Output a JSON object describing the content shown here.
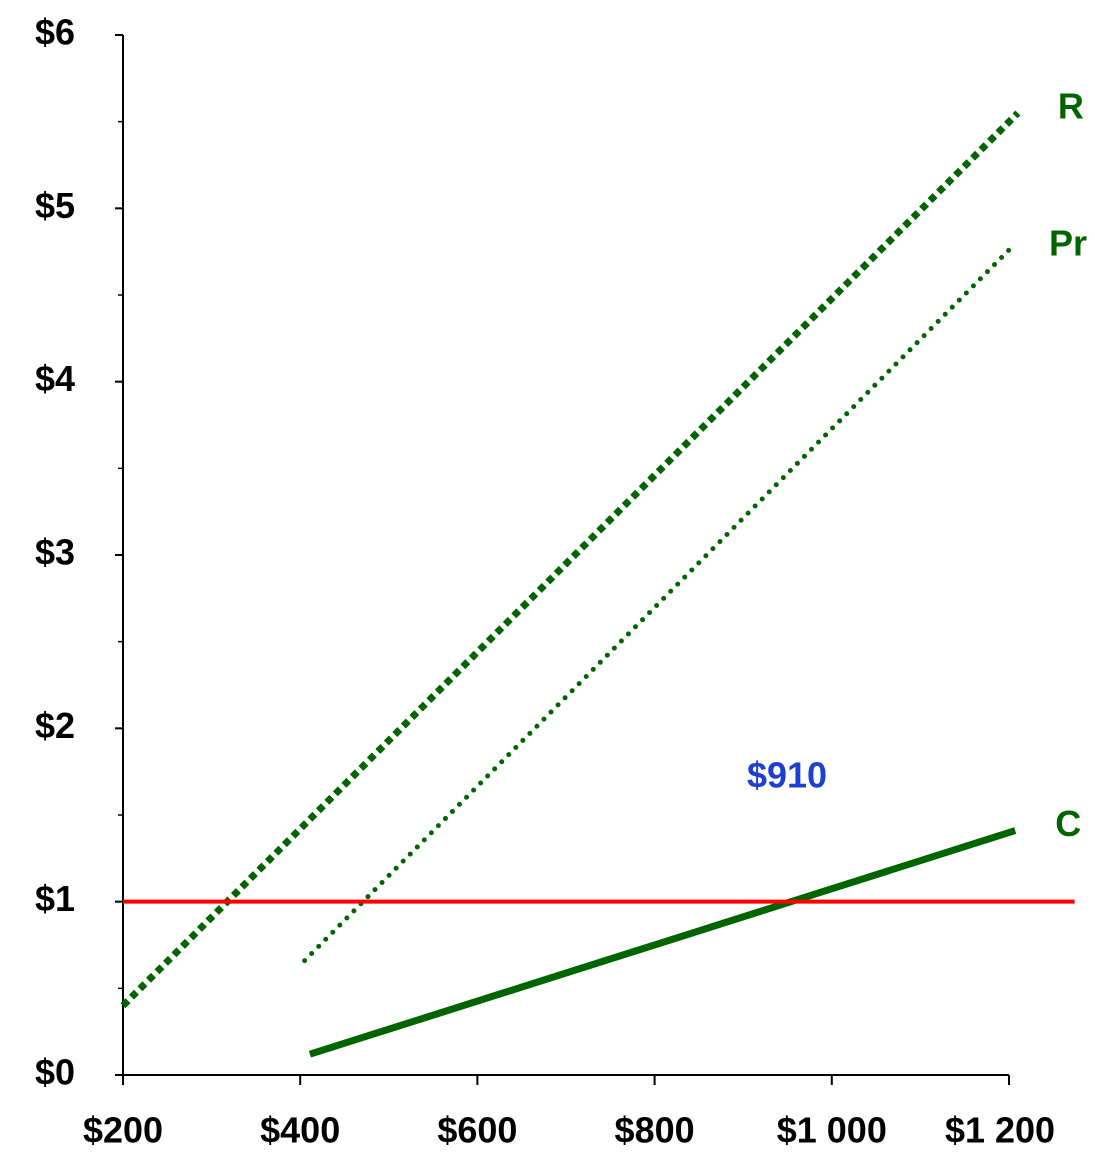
{
  "chart_data": {
    "type": "line",
    "xlim": [
      200,
      1200
    ],
    "ylim": [
      0,
      6
    ],
    "xticks": [
      {
        "value": 200,
        "label": "$200"
      },
      {
        "value": 400,
        "label": "$400"
      },
      {
        "value": 600,
        "label": "$600"
      },
      {
        "value": 800,
        "label": "$800"
      },
      {
        "value": 1000,
        "label": "$1 000"
      },
      {
        "value": 1200,
        "label": "$1 200"
      }
    ],
    "yticks": [
      {
        "value": 0,
        "label": "$0"
      },
      {
        "value": 1,
        "label": "$1"
      },
      {
        "value": 2,
        "label": "$2"
      },
      {
        "value": 3,
        "label": "$3"
      },
      {
        "value": 4,
        "label": "$4"
      },
      {
        "value": 5,
        "label": "$5"
      },
      {
        "value": 6,
        "label": "$6"
      }
    ],
    "series": [
      {
        "name": "R",
        "color": "#006400",
        "style": "square-dot",
        "x": [
          200,
          1210
        ],
        "values": [
          0.4,
          5.55
        ]
      },
      {
        "name": "Pr",
        "color": "#006400",
        "style": "round-dot",
        "x": [
          405,
          1200
        ],
        "values": [
          0.66,
          4.76
        ]
      },
      {
        "name": "C",
        "color": "#006400",
        "style": "solid",
        "x": [
          411,
          1207
        ],
        "values": [
          0.12,
          1.41
        ]
      },
      {
        "color": "#ff0000",
        "style": "thin",
        "x": [
          200,
          1274
        ],
        "values": [
          1,
          1
        ]
      }
    ],
    "annotations": [
      {
        "text": "$910",
        "color": "#1f3fd0"
      }
    ]
  }
}
